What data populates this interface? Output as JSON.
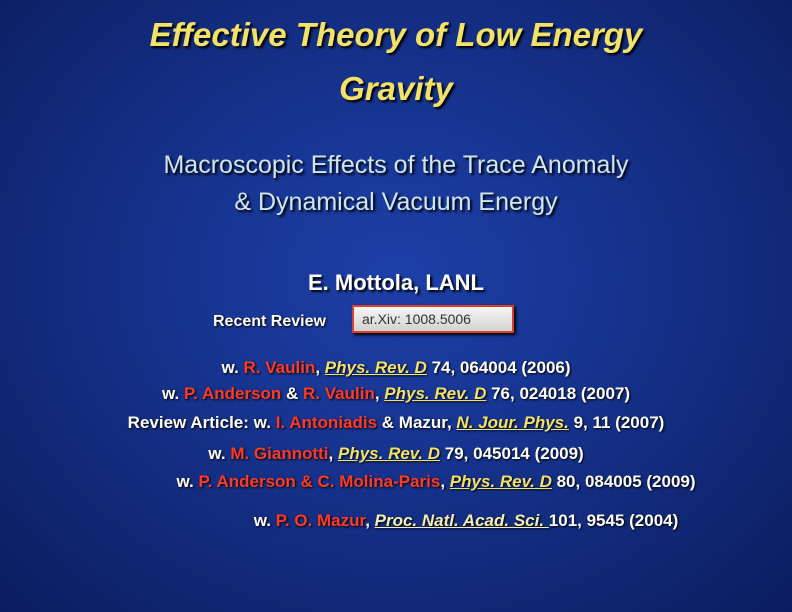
{
  "title": [
    "Effective Theory of Low Energy",
    "Gravity"
  ],
  "subtitle": [
    "Macroscopic Effects of the Trace Anomaly",
    "& Dynamical Vacuum Energy"
  ],
  "author": "E. Mottola, LANL",
  "review_label": "Recent Review",
  "arxiv": "ar.Xiv: 1008.5006",
  "references": [
    [
      {
        "text": "w. ",
        "color": "#ffffff"
      },
      {
        "text": "R. Vaulin",
        "color": "#ff3a22"
      },
      {
        "text": ", ",
        "color": "#ffffff"
      },
      {
        "text": "Phys. Rev. D",
        "color": "#f2e26a",
        "italic": true,
        "underline": true
      },
      {
        "text": " 74, 064004 (2006)",
        "color": "#ffffff"
      }
    ],
    [
      {
        "text": "w. ",
        "color": "#ffffff"
      },
      {
        "text": "P. Anderson",
        "color": "#ff3a22"
      },
      {
        "text": " & ",
        "color": "#ffffff"
      },
      {
        "text": "R. Vaulin",
        "color": "#ff3a22"
      },
      {
        "text": ", ",
        "color": "#ffffff"
      },
      {
        "text": "Phys. Rev. D",
        "color": "#f2e26a",
        "italic": true,
        "underline": true
      },
      {
        "text": " 76, 024018 (2007)",
        "color": "#ffffff"
      }
    ],
    [
      {
        "text": "Review Article: w. ",
        "color": "#ffffff"
      },
      {
        "text": "I. Antoniadis",
        "color": "#ff3a22"
      },
      {
        "text": " & Mazur, ",
        "color": "#ffffff"
      },
      {
        "text": "N. Jour. Phys.",
        "color": "#f2e26a",
        "italic": true,
        "underline": true
      },
      {
        "text": " 9, 11 (2007)",
        "color": "#ffffff"
      }
    ],
    [
      {
        "text": "w. ",
        "color": "#ffffff"
      },
      {
        "text": "M. Giannotti",
        "color": "#ff3a22"
      },
      {
        "text": ", ",
        "color": "#ffffff"
      },
      {
        "text": "Phys. Rev. D",
        "color": "#f2e26a",
        "italic": true,
        "underline": true
      },
      {
        "text": " 79, 045014 (2009)",
        "color": "#ffffff"
      }
    ],
    [
      {
        "text": "w. ",
        "color": "#ffffff"
      },
      {
        "text": "P. Anderson & C. Molina-Paris",
        "color": "#ff3a22"
      },
      {
        "text": ", ",
        "color": "#ffffff"
      },
      {
        "text": "Phys. Rev. D",
        "color": "#f2e26a",
        "italic": true,
        "underline": true
      },
      {
        "text": " 80, 084005 (2009)",
        "color": "#ffffff"
      }
    ],
    [
      {
        "text": "w. ",
        "color": "#ffffff"
      },
      {
        "text": "P. O. Mazur",
        "color": "#ff3a22"
      },
      {
        "text": ", ",
        "color": "#ffffff"
      },
      {
        "text": "Proc. Natl. Acad. Sci. ",
        "color": "#f4eeb0",
        "italic": true,
        "underline": true
      },
      {
        "text": "101, 9545 (2004)",
        "color": "#ffffff"
      }
    ]
  ]
}
